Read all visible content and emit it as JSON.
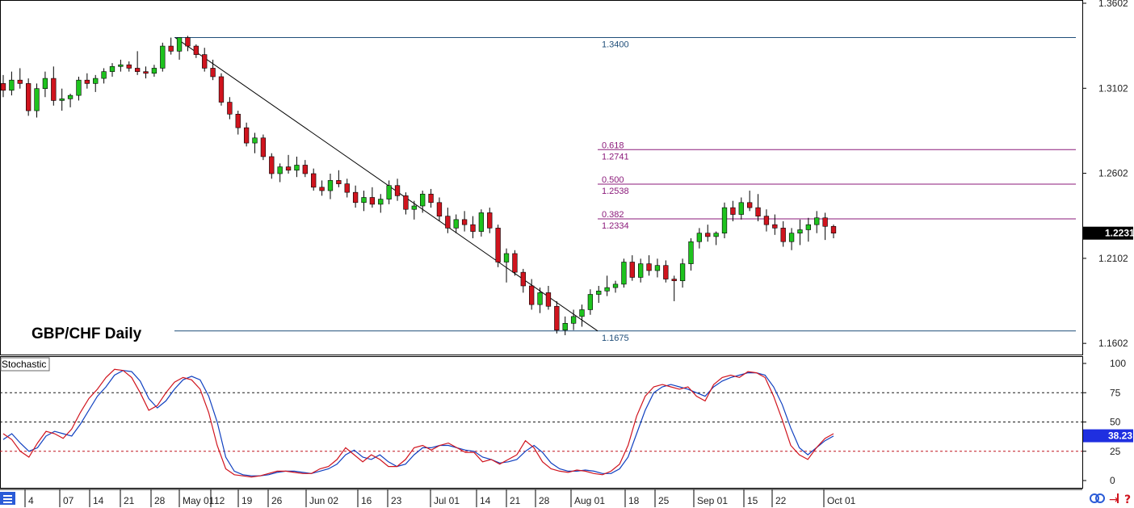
{
  "chart_data": [
    {
      "type": "candlestick",
      "title": "GBP/CHF Daily",
      "y_range": [
        1.156,
        1.3602
      ],
      "y_ticks": [
        "1.3602",
        "1.3102",
        "1.2602",
        "1.2102",
        "1.1602"
      ],
      "current_price": "1.2231",
      "levels": [
        {
          "value": 1.34,
          "label": "1.3400",
          "color": "#1f4e79"
        },
        {
          "value": 1.1675,
          "label": "1.1675",
          "color": "#1f4e79"
        },
        {
          "value": 1.2741,
          "ratio": "0.618",
          "label": "1.2741",
          "color": "#8b1a7a"
        },
        {
          "value": 1.2538,
          "ratio": "0.500",
          "label": "1.2538",
          "color": "#8b1a7a"
        },
        {
          "value": 1.2334,
          "ratio": "0.382",
          "label": "1.2334",
          "color": "#8b1a7a"
        }
      ],
      "trendline": {
        "from": 1.34,
        "to": 1.1675
      },
      "x_ticks": [
        "4",
        "07",
        "14",
        "21",
        "28",
        "May 01",
        "12",
        "19",
        "26",
        "Jun 02",
        "16",
        "23",
        "Jul 01",
        "14",
        "21",
        "28",
        "Aug 01",
        "18",
        "25",
        "Sep 01",
        "15",
        "22",
        "Oct 01"
      ],
      "up_color": "#1ec31e",
      "down_color": "#d0141e",
      "candles": [
        [
          1.313,
          1.318,
          1.305,
          1.309
        ],
        [
          1.309,
          1.32,
          1.306,
          1.315
        ],
        [
          1.315,
          1.322,
          1.31,
          1.313
        ],
        [
          1.313,
          1.316,
          1.294,
          1.297
        ],
        [
          1.297,
          1.313,
          1.293,
          1.31
        ],
        [
          1.31,
          1.32,
          1.305,
          1.316
        ],
        [
          1.316,
          1.323,
          1.3,
          1.303
        ],
        [
          1.303,
          1.31,
          1.297,
          1.304
        ],
        [
          1.304,
          1.307,
          1.299,
          1.306
        ],
        [
          1.306,
          1.317,
          1.303,
          1.315
        ],
        [
          1.315,
          1.319,
          1.31,
          1.313
        ],
        [
          1.313,
          1.318,
          1.308,
          1.316
        ],
        [
          1.316,
          1.322,
          1.313,
          1.32
        ],
        [
          1.32,
          1.325,
          1.317,
          1.323
        ],
        [
          1.323,
          1.327,
          1.32,
          1.324
        ],
        [
          1.324,
          1.326,
          1.32,
          1.322
        ],
        [
          1.322,
          1.332,
          1.318,
          1.32
        ],
        [
          1.32,
          1.323,
          1.316,
          1.319
        ],
        [
          1.319,
          1.324,
          1.317,
          1.322
        ],
        [
          1.322,
          1.337,
          1.32,
          1.335
        ],
        [
          1.335,
          1.34,
          1.33,
          1.332
        ],
        [
          1.332,
          1.34,
          1.327,
          1.34
        ],
        [
          1.34,
          1.341,
          1.332,
          1.335
        ],
        [
          1.335,
          1.336,
          1.328,
          1.33
        ],
        [
          1.33,
          1.334,
          1.32,
          1.322
        ],
        [
          1.322,
          1.327,
          1.315,
          1.317
        ],
        [
          1.317,
          1.319,
          1.3,
          1.302
        ],
        [
          1.302,
          1.305,
          1.292,
          1.295
        ],
        [
          1.295,
          1.297,
          1.283,
          1.287
        ],
        [
          1.287,
          1.29,
          1.276,
          1.278
        ],
        [
          1.278,
          1.284,
          1.272,
          1.281
        ],
        [
          1.281,
          1.283,
          1.268,
          1.27
        ],
        [
          1.27,
          1.272,
          1.257,
          1.26
        ],
        [
          1.26,
          1.266,
          1.255,
          1.264
        ],
        [
          1.264,
          1.271,
          1.26,
          1.262
        ],
        [
          1.262,
          1.27,
          1.258,
          1.265
        ],
        [
          1.265,
          1.268,
          1.258,
          1.26
        ],
        [
          1.26,
          1.263,
          1.25,
          1.252
        ],
        [
          1.252,
          1.256,
          1.247,
          1.25
        ],
        [
          1.25,
          1.26,
          1.245,
          1.256
        ],
        [
          1.256,
          1.262,
          1.252,
          1.254
        ],
        [
          1.254,
          1.257,
          1.246,
          1.249
        ],
        [
          1.249,
          1.253,
          1.24,
          1.243
        ],
        [
          1.243,
          1.25,
          1.238,
          1.246
        ],
        [
          1.246,
          1.252,
          1.24,
          1.242
        ],
        [
          1.242,
          1.248,
          1.237,
          1.245
        ],
        [
          1.245,
          1.256,
          1.242,
          1.253
        ],
        [
          1.253,
          1.257,
          1.244,
          1.247
        ],
        [
          1.247,
          1.249,
          1.236,
          1.239
        ],
        [
          1.239,
          1.244,
          1.233,
          1.241
        ],
        [
          1.241,
          1.25,
          1.237,
          1.248
        ],
        [
          1.248,
          1.251,
          1.24,
          1.243
        ],
        [
          1.243,
          1.246,
          1.232,
          1.235
        ],
        [
          1.235,
          1.24,
          1.225,
          1.228
        ],
        [
          1.228,
          1.236,
          1.225,
          1.233
        ],
        [
          1.233,
          1.238,
          1.226,
          1.23
        ],
        [
          1.23,
          1.235,
          1.222,
          1.226
        ],
        [
          1.226,
          1.239,
          1.223,
          1.237
        ],
        [
          1.237,
          1.24,
          1.225,
          1.228
        ],
        [
          1.228,
          1.23,
          1.205,
          1.208
        ],
        [
          1.208,
          1.216,
          1.196,
          1.213
        ],
        [
          1.213,
          1.215,
          1.2,
          1.202
        ],
        [
          1.202,
          1.204,
          1.19,
          1.194
        ],
        [
          1.194,
          1.198,
          1.18,
          1.183
        ],
        [
          1.183,
          1.193,
          1.178,
          1.19
        ],
        [
          1.19,
          1.194,
          1.18,
          1.182
        ],
        [
          1.182,
          1.185,
          1.166,
          1.168
        ],
        [
          1.168,
          1.176,
          1.165,
          1.172
        ],
        [
          1.172,
          1.18,
          1.168,
          1.176
        ],
        [
          1.176,
          1.183,
          1.17,
          1.18
        ],
        [
          1.18,
          1.192,
          1.177,
          1.189
        ],
        [
          1.189,
          1.194,
          1.184,
          1.191
        ],
        [
          1.191,
          1.2,
          1.188,
          1.193
        ],
        [
          1.193,
          1.197,
          1.19,
          1.195
        ],
        [
          1.195,
          1.21,
          1.193,
          1.208
        ],
        [
          1.208,
          1.212,
          1.197,
          1.199
        ],
        [
          1.199,
          1.21,
          1.196,
          1.207
        ],
        [
          1.207,
          1.212,
          1.2,
          1.203
        ],
        [
          1.203,
          1.21,
          1.199,
          1.206
        ],
        [
          1.206,
          1.209,
          1.196,
          1.198
        ],
        [
          1.198,
          1.2,
          1.185,
          1.197
        ],
        [
          1.197,
          1.21,
          1.193,
          1.207
        ],
        [
          1.207,
          1.222,
          1.203,
          1.22
        ],
        [
          1.22,
          1.228,
          1.216,
          1.225
        ],
        [
          1.225,
          1.23,
          1.22,
          1.223
        ],
        [
          1.223,
          1.226,
          1.218,
          1.225
        ],
        [
          1.225,
          1.243,
          1.222,
          1.24
        ],
        [
          1.24,
          1.244,
          1.232,
          1.236
        ],
        [
          1.236,
          1.246,
          1.233,
          1.243
        ],
        [
          1.243,
          1.25,
          1.238,
          1.24
        ],
        [
          1.24,
          1.248,
          1.232,
          1.235
        ],
        [
          1.235,
          1.239,
          1.226,
          1.23
        ],
        [
          1.23,
          1.236,
          1.224,
          1.228
        ],
        [
          1.228,
          1.232,
          1.217,
          1.22
        ],
        [
          1.22,
          1.228,
          1.215,
          1.225
        ],
        [
          1.225,
          1.233,
          1.218,
          1.227
        ],
        [
          1.227,
          1.234,
          1.22,
          1.23
        ],
        [
          1.23,
          1.238,
          1.225,
          1.234
        ],
        [
          1.234,
          1.237,
          1.221,
          1.229
        ],
        [
          1.229,
          1.23,
          1.222,
          1.225
        ]
      ]
    },
    {
      "type": "line",
      "title": "Stochastic",
      "y_range": [
        0,
        100
      ],
      "y_ticks": [
        "100",
        "75",
        "50",
        "25",
        "0"
      ],
      "levels": [
        {
          "value": 75,
          "color": "#1a1a1a"
        },
        {
          "value": 50,
          "color": "#1a1a1a"
        },
        {
          "value": 25,
          "color": "#c0141e"
        }
      ],
      "current_value": "38.23",
      "series": [
        {
          "color": "#1040c0",
          "values": [
            35,
            40,
            32,
            25,
            28,
            38,
            42,
            40,
            38,
            48,
            60,
            72,
            80,
            90,
            94,
            93,
            85,
            70,
            62,
            68,
            78,
            86,
            89,
            86,
            72,
            50,
            20,
            8,
            5,
            4,
            4,
            5,
            7,
            8,
            8,
            7,
            6,
            8,
            10,
            14,
            22,
            26,
            20,
            18,
            22,
            16,
            12,
            14,
            22,
            28,
            28,
            30,
            30,
            28,
            26,
            25,
            20,
            18,
            15,
            16,
            18,
            25,
            30,
            24,
            15,
            10,
            8,
            8,
            9,
            8,
            6,
            6,
            10,
            20,
            40,
            60,
            75,
            80,
            82,
            80,
            78,
            75,
            72,
            80,
            85,
            88,
            90,
            92,
            92,
            90,
            80,
            65,
            45,
            28,
            22,
            28,
            34,
            38
          ]
        },
        {
          "color": "#d0141e",
          "values": [
            40,
            35,
            25,
            20,
            32,
            42,
            40,
            36,
            44,
            58,
            70,
            78,
            88,
            95,
            94,
            88,
            75,
            60,
            64,
            75,
            84,
            88,
            86,
            78,
            58,
            30,
            10,
            5,
            4,
            3,
            4,
            6,
            8,
            8,
            7,
            6,
            6,
            10,
            12,
            18,
            28,
            22,
            16,
            22,
            18,
            12,
            12,
            18,
            28,
            30,
            26,
            30,
            32,
            28,
            24,
            24,
            16,
            18,
            14,
            18,
            22,
            34,
            28,
            16,
            10,
            8,
            7,
            9,
            8,
            6,
            5,
            8,
            14,
            30,
            55,
            72,
            80,
            82,
            80,
            78,
            80,
            72,
            68,
            82,
            88,
            90,
            88,
            93,
            92,
            88,
            72,
            52,
            30,
            22,
            18,
            28,
            36,
            40
          ]
        }
      ]
    }
  ],
  "labels": {
    "stochastic": "Stochastic"
  }
}
